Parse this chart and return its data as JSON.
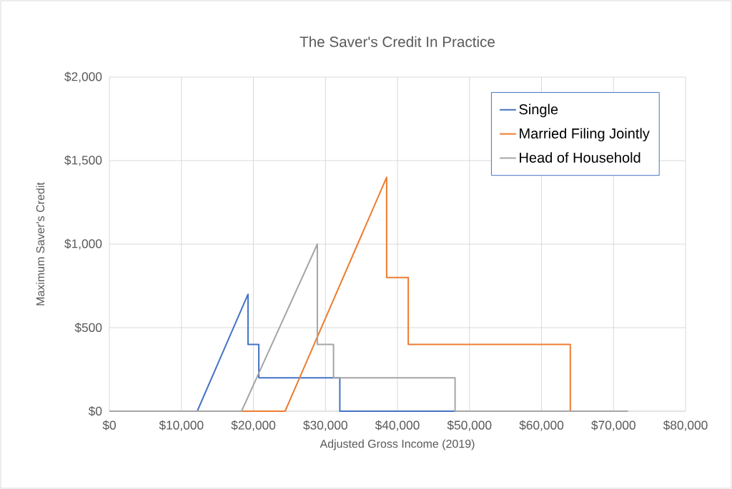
{
  "chart_data": {
    "type": "line",
    "title": "The Saver's Credit In Practice",
    "xlabel": "Adjusted Gross Income (2019)",
    "ylabel": "Maximum Saver's Credit",
    "xlim": [
      0,
      80000
    ],
    "ylim": [
      0,
      2000
    ],
    "xticks": [
      {
        "value": 0,
        "label": "$0"
      },
      {
        "value": 10000,
        "label": "$10,000"
      },
      {
        "value": 20000,
        "label": "$20,000"
      },
      {
        "value": 30000,
        "label": "$30,000"
      },
      {
        "value": 40000,
        "label": "$40,000"
      },
      {
        "value": 50000,
        "label": "$50,000"
      },
      {
        "value": 60000,
        "label": "$60,000"
      },
      {
        "value": 70000,
        "label": "$70,000"
      },
      {
        "value": 80000,
        "label": "$80,000"
      }
    ],
    "yticks": [
      {
        "value": 0,
        "label": "$0"
      },
      {
        "value": 500,
        "label": "$500"
      },
      {
        "value": 1000,
        "label": "$1,000"
      },
      {
        "value": 1500,
        "label": "$1,500"
      },
      {
        "value": 2000,
        "label": "$2,000"
      }
    ],
    "grid": true,
    "legend": "top right",
    "marker": "none",
    "line_style": "solid",
    "series": [
      {
        "name": "Single",
        "color": "#4472c4",
        "x": [
          0,
          12200,
          19250,
          19250,
          20750,
          20750,
          32000,
          32000,
          48000
        ],
        "values": [
          0,
          0,
          700,
          400,
          400,
          200,
          200,
          0,
          0
        ]
      },
      {
        "name": "Married Filing Jointly",
        "color": "#ed7d31",
        "x": [
          0,
          24400,
          38500,
          38500,
          41500,
          41500,
          64000,
          64000
        ],
        "values": [
          0,
          0,
          1400,
          800,
          800,
          400,
          400,
          0
        ]
      },
      {
        "name": "Head of Household",
        "color": "#a5a5a5",
        "x": [
          0,
          18350,
          28875,
          28875,
          31125,
          31125,
          48000,
          48000,
          72000
        ],
        "values": [
          0,
          0,
          1000,
          400,
          400,
          200,
          200,
          0,
          0
        ]
      }
    ]
  }
}
